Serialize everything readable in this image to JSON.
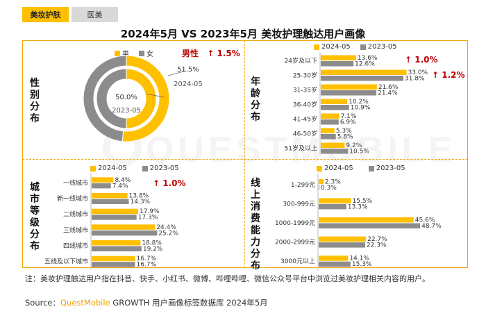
{
  "tabs": [
    {
      "label": "美妆护肤"
    },
    {
      "label": "医美"
    }
  ],
  "title": "2024年5月 VS 2023年5月 美妆护理触达用户画像",
  "colors": {
    "y2024": "#FFC000",
    "y2023": "#8C8C8C",
    "up": "#C00000",
    "border": "#F0A800"
  },
  "watermark": "QUESTMOBILE",
  "gender": {
    "panel_title": "性别分布",
    "legend": [
      "男",
      "女"
    ],
    "highlight": {
      "text": "男性",
      "arrow": "↑",
      "delta": "1.5%"
    },
    "year_labels": [
      "2024-05",
      "2023-05"
    ]
  },
  "age": {
    "panel_title": "年龄分布",
    "legend": [
      "2024-05",
      "2023-05"
    ],
    "highlights": [
      {
        "arrow": "↑",
        "delta": "1.0%"
      },
      {
        "arrow": "↑",
        "delta": "1.2%"
      }
    ]
  },
  "city": {
    "panel_title": "城市等级分布",
    "legend": [
      "2024-05",
      "2023-05"
    ],
    "highlight": {
      "arrow": "↑",
      "delta": "1.0%"
    }
  },
  "spend": {
    "panel_title": "线上消费能力分布",
    "legend": [
      "2024-05",
      "2023-05"
    ]
  },
  "chart_data": [
    {
      "type": "pie",
      "name": "gender",
      "categories": [
        "男",
        "女"
      ],
      "series": [
        {
          "name": "2024-05",
          "values": [
            51.5,
            48.5
          ],
          "labels": [
            "51.5%",
            ""
          ]
        },
        {
          "name": "2023-05",
          "values": [
            50.0,
            50.0
          ],
          "labels": [
            "50.0%",
            ""
          ]
        }
      ]
    },
    {
      "type": "bar",
      "name": "age",
      "categories": [
        "24岁及以下",
        "25-30岁",
        "31-35岁",
        "36-40岁",
        "41-45岁",
        "46-50岁",
        "51岁及以上"
      ],
      "series": [
        {
          "name": "2024-05",
          "values": [
            13.6,
            33.0,
            21.6,
            10.2,
            7.1,
            5.3,
            9.2
          ]
        },
        {
          "name": "2023-05",
          "values": [
            12.6,
            31.8,
            21.4,
            10.9,
            6.9,
            5.8,
            10.5
          ]
        }
      ],
      "xlim": [
        0,
        35
      ]
    },
    {
      "type": "bar",
      "name": "city",
      "categories": [
        "一线城市",
        "新一线城市",
        "二线城市",
        "三线城市",
        "四线城市",
        "五线及以下城市"
      ],
      "series": [
        {
          "name": "2024-05",
          "values": [
            8.4,
            13.8,
            17.9,
            24.4,
            18.8,
            16.7
          ]
        },
        {
          "name": "2023-05",
          "values": [
            7.4,
            14.3,
            17.3,
            25.2,
            19.2,
            16.7
          ]
        }
      ],
      "xlim": [
        0,
        35
      ]
    },
    {
      "type": "bar",
      "name": "spend",
      "categories": [
        "1-299元",
        "300-999元",
        "1000-1999元",
        "2000-2999元",
        "3000元以上"
      ],
      "series": [
        {
          "name": "2024-05",
          "values": [
            2.3,
            15.5,
            45.6,
            22.7,
            14.1
          ]
        },
        {
          "name": "2023-05",
          "values": [
            0.3,
            13.3,
            48.7,
            22.3,
            15.3
          ]
        }
      ],
      "xlim": [
        0,
        50
      ]
    }
  ],
  "note": "注：美妆护理触达用户指在抖音、快手、小红书、微博、哔哩哔哩、微信公众号平台中浏览过美妆护理相关内容的用户。",
  "source": {
    "prefix": "Source：",
    "brand": "QuestMobile",
    "rest": " GROWTH 用户画像标签数据库 2024年5月"
  }
}
